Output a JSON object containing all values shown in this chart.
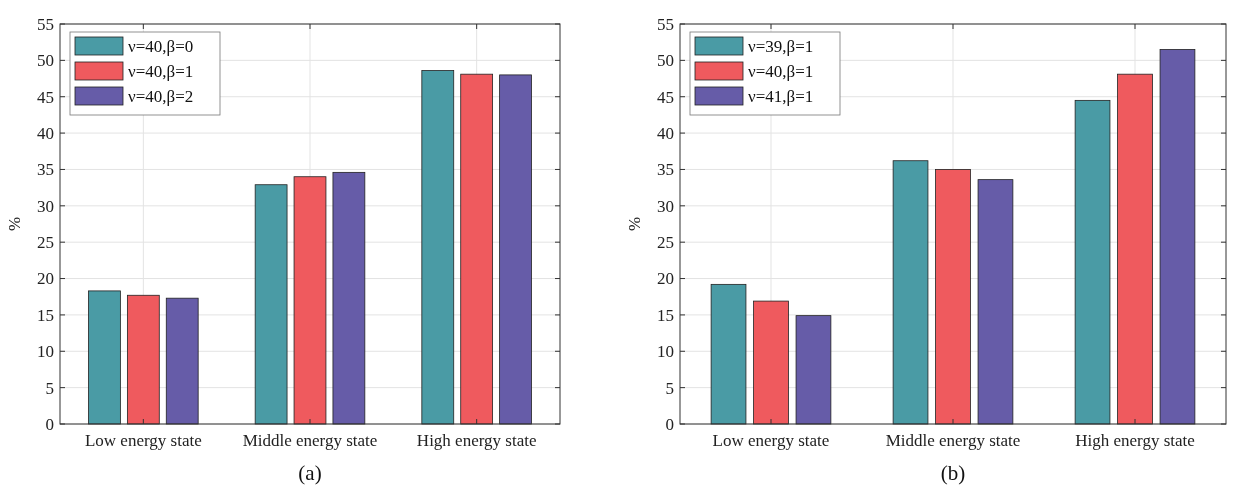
{
  "chart_data": [
    {
      "type": "bar",
      "title": "(a)",
      "ylabel": "%",
      "categories": [
        "Low energy state",
        "Middle energy state",
        "High energy state"
      ],
      "series": [
        {
          "name": "ν=40,β=0",
          "color": "#4a9ba5",
          "values": [
            18.3,
            32.9,
            48.6
          ]
        },
        {
          "name": "ν=40,β=1",
          "color": "#ef5a5e",
          "values": [
            17.7,
            34.0,
            48.1
          ]
        },
        {
          "name": "ν=40,β=2",
          "color": "#665ca8",
          "values": [
            17.3,
            34.6,
            48.0
          ]
        }
      ],
      "ylim": [
        0,
        55
      ],
      "yticks": [
        0,
        5,
        10,
        15,
        20,
        25,
        30,
        35,
        40,
        45,
        50,
        55
      ],
      "grid": true,
      "legend": "top left"
    },
    {
      "type": "bar",
      "title": "(b)",
      "ylabel": "%",
      "categories": [
        "Low energy state",
        "Middle energy state",
        "High energy state"
      ],
      "series": [
        {
          "name": "ν=39,β=1",
          "color": "#4a9ba5",
          "values": [
            19.2,
            36.2,
            44.5
          ]
        },
        {
          "name": "ν=40,β=1",
          "color": "#ef5a5e",
          "values": [
            16.9,
            35.0,
            48.1
          ]
        },
        {
          "name": "ν=41,β=1",
          "color": "#665ca8",
          "values": [
            14.9,
            33.6,
            51.5
          ]
        }
      ],
      "ylim": [
        0,
        55
      ],
      "yticks": [
        0,
        5,
        10,
        15,
        20,
        25,
        30,
        35,
        40,
        45,
        50,
        55
      ],
      "grid": true,
      "legend": "top left"
    }
  ]
}
